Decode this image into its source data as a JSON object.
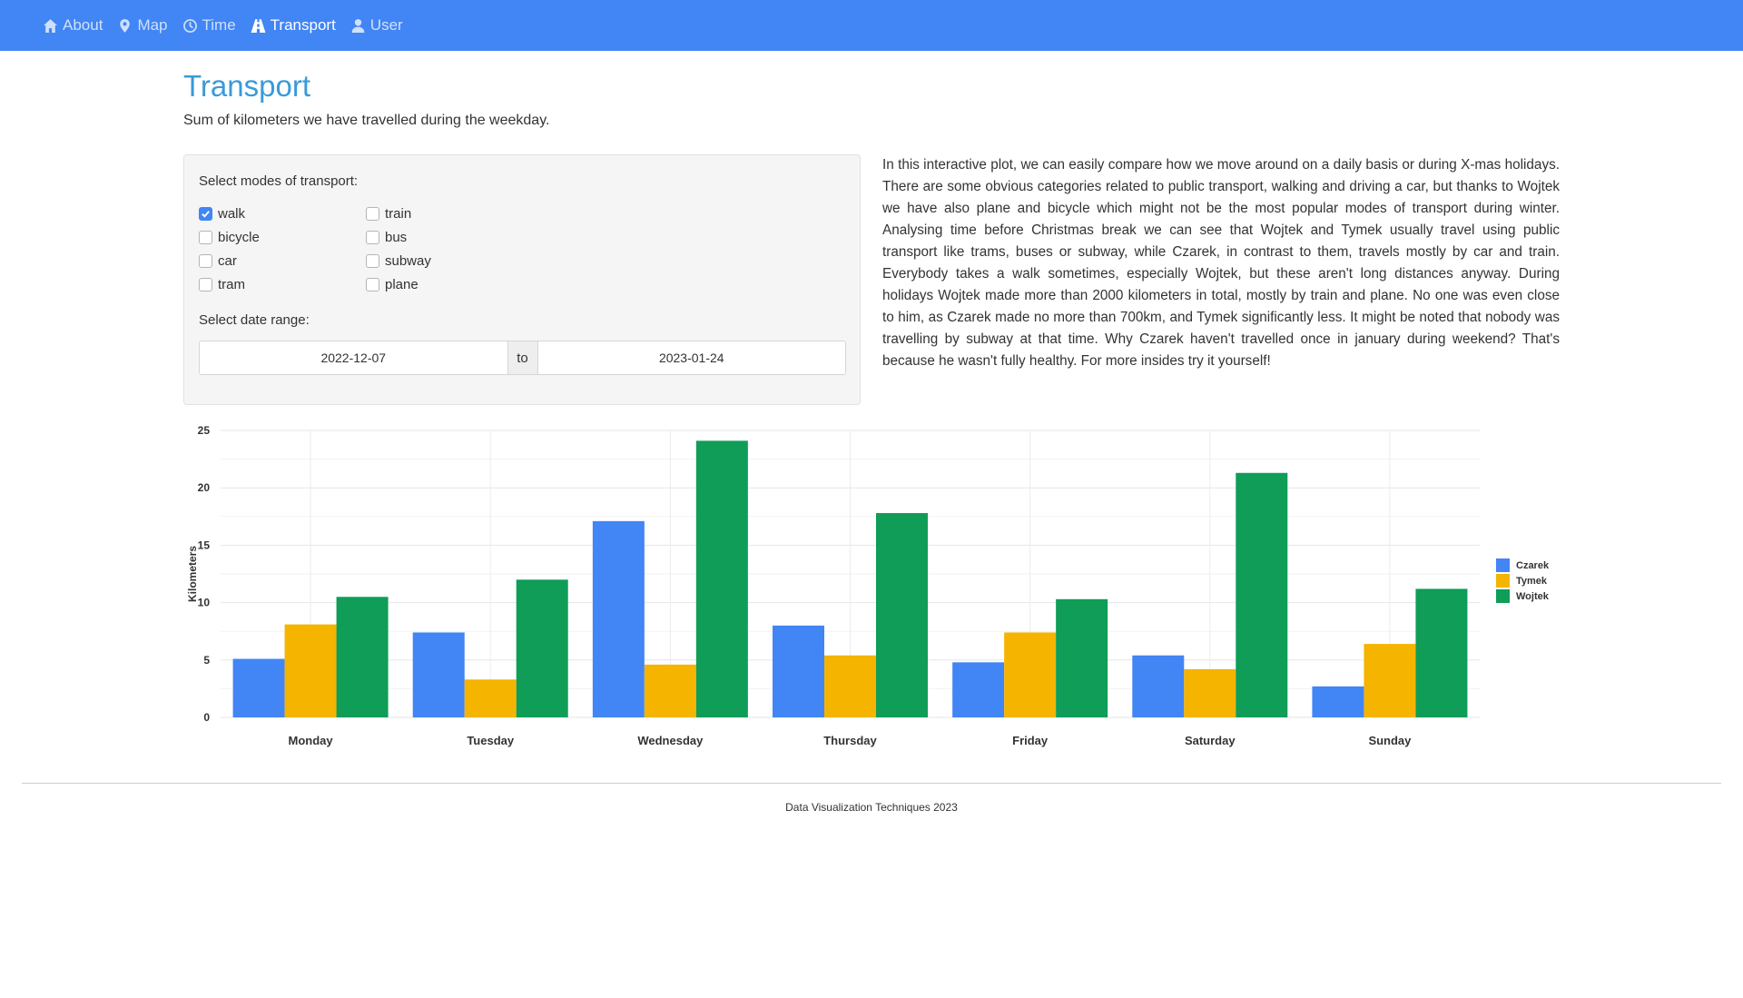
{
  "nav": {
    "items": [
      {
        "label": "About",
        "icon": "home-icon"
      },
      {
        "label": "Map",
        "icon": "map-marker-icon"
      },
      {
        "label": "Time",
        "icon": "clock-icon"
      },
      {
        "label": "Transport",
        "icon": "road-icon"
      },
      {
        "label": "User",
        "icon": "user-icon"
      }
    ],
    "active": "Transport"
  },
  "page": {
    "title": "Transport",
    "subtitle": "Sum of kilometers we have travelled during the weekday."
  },
  "controls": {
    "modes_label": "Select modes of transport:",
    "modes": [
      {
        "label": "walk",
        "checked": true
      },
      {
        "label": "bicycle",
        "checked": false
      },
      {
        "label": "car",
        "checked": false
      },
      {
        "label": "tram",
        "checked": false
      },
      {
        "label": "train",
        "checked": false
      },
      {
        "label": "bus",
        "checked": false
      },
      {
        "label": "subway",
        "checked": false
      },
      {
        "label": "plane",
        "checked": false
      }
    ],
    "date_label": "Select date range:",
    "date_from": "2022-12-07",
    "date_sep": "to",
    "date_to": "2023-01-24"
  },
  "description": "In this interactive plot, we can easily compare how we move around on a daily basis or during X-mas holidays. There are some obvious categories related to public transport, walking and driving a car, but thanks to Wojtek we have also plane and bicycle which might not be the most popular modes of transport during winter. Analysing time before Christmas break we can see that Wojtek and Tymek usually travel using public transport like trams, buses or subway, while Czarek, in contrast to them, travels mostly by car and train. Everybody takes a walk sometimes, especially Wojtek, but these aren't long distances anyway. During holidays Wojtek made more than 2000 kilometers in total, mostly by train and plane. No one was even close to him, as Czarek made no more than 700km, and Tymek significantly less. It might be noted that nobody was travelling by subway at that time. Why Czarek haven't travelled once in january during weekend? That's because he wasn't fully healthy. For more insides try it yourself!",
  "chart_data": {
    "type": "bar",
    "title": "",
    "xlabel": "",
    "ylabel": "Kilometers",
    "ylim": [
      0,
      25
    ],
    "yticks": [
      0,
      5,
      10,
      15,
      20,
      25
    ],
    "categories": [
      "Monday",
      "Tuesday",
      "Wednesday",
      "Thursday",
      "Friday",
      "Saturday",
      "Sunday"
    ],
    "series": [
      {
        "name": "Czarek",
        "color": "#4285f4",
        "values": [
          5.1,
          7.4,
          17.1,
          8.0,
          4.8,
          5.4,
          2.7
        ]
      },
      {
        "name": "Tymek",
        "color": "#f4b400",
        "values": [
          8.1,
          3.3,
          4.6,
          5.4,
          7.4,
          4.2,
          6.4
        ]
      },
      {
        "name": "Wojtek",
        "color": "#0f9d58",
        "values": [
          10.5,
          12.0,
          24.1,
          17.8,
          10.3,
          21.3,
          11.2
        ]
      }
    ],
    "legend": "right",
    "grid": true
  },
  "footer": {
    "text": "Data Visualization Techniques 2023"
  }
}
